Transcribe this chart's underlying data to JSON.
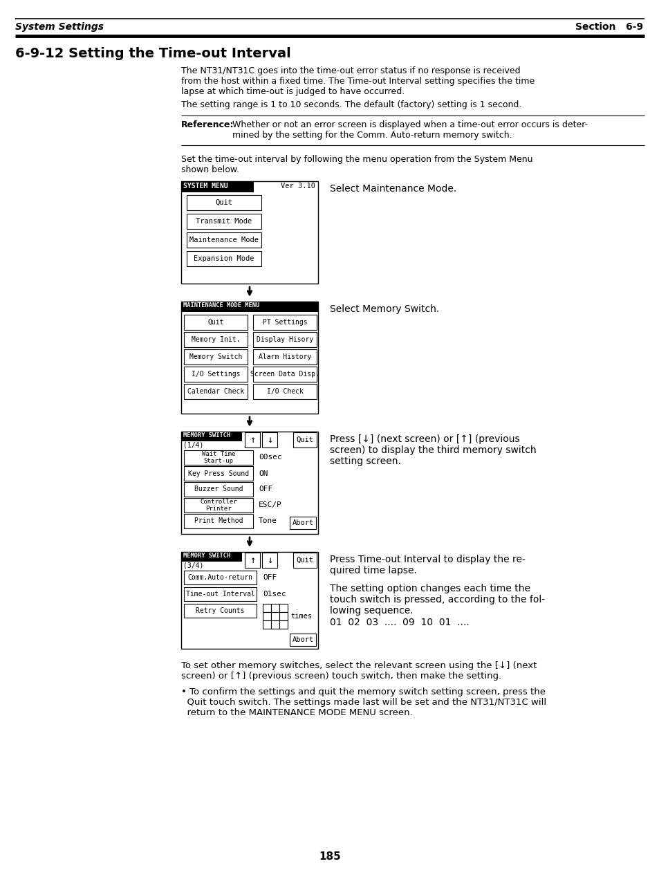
{
  "title_header_left": "System Settings",
  "title_header_right": "Section   6-9",
  "section_title": "6-9-12 Setting the Time-out Interval",
  "body1_lines": [
    "The NT31/NT31C goes into the time-out error status if no response is received",
    "from the host within a fixed time. The Time-out Interval setting specifies the time",
    "lapse at which time-out is judged to have occurred."
  ],
  "body2": "The setting range is 1 to 10 seconds. The default (factory) setting is 1 second.",
  "ref_label": "Reference:",
  "ref_lines": [
    "Whether or not an error screen is displayed when a time-out error occurs is deter-",
    "mined by the setting for the Comm. Auto-return memory switch."
  ],
  "intro_lines": [
    "Set the time-out interval by following the menu operation from the System Menu",
    "shown below."
  ],
  "s1_title": "SYSTEM MENU",
  "s1_ver": "Ver 3.10",
  "s1_btns": [
    "Quit",
    "Transmit Mode",
    "Maintenance Mode",
    "Expansion Mode"
  ],
  "s1_label": "Select Maintenance Mode.",
  "s2_title": "MAINTENANCE MODE MENU",
  "s2_left": [
    "Quit",
    "Memory Init.",
    "Memory Switch",
    "I/O Settings",
    "Calendar Check"
  ],
  "s2_right": [
    "PT Settings",
    "Display Hisory",
    "Alarm History",
    "Screen Data Disp.",
    "I/O Check"
  ],
  "s2_label": "Select Memory Switch.",
  "s3_title": "MEMORY SWITCH",
  "s3_sub": "(1/4)",
  "s3_left": [
    "Start-up\n     Wait Time",
    "Key Press Sound",
    "Buzzer Sound",
    "Printer\n Controller",
    "Print Method"
  ],
  "s3_right": [
    "00sec",
    "ON",
    "OFF",
    "ESC/P",
    "Tone"
  ],
  "s3_label": "Press [↓] (next screen) or [↑] (previous\nscreen) to display the third memory switch\nsetting screen.",
  "s4_title": "MEMORY SWITCH",
  "s4_sub": "(3/4)",
  "s4_left": [
    "Comm.Auto-return",
    "Time-out Interval",
    "Retry Counts"
  ],
  "s4_right": [
    "OFF",
    "01sec",
    ""
  ],
  "s4_label1": "Press Time-out Interval to display the re-\nquired time lapse.",
  "s4_label2": "The setting option changes each time the\ntouch switch is pressed, according to the fol-\nlowing sequence.\n01  02  03  ....  09  10  01  ....",
  "footer1": "To set other memory switches, select the relevant screen using the [↓] (next",
  "footer2": "screen) or [↑] (previous screen) touch switch, then make the setting.",
  "bullet_lines": [
    "• To confirm the settings and quit the memory switch setting screen, press the",
    "  Quit touch switch. The settings made last will be set and the NT31/NT31C will",
    "  return to the MAINTENANCE MODE MENU screen."
  ],
  "page_number": "185"
}
